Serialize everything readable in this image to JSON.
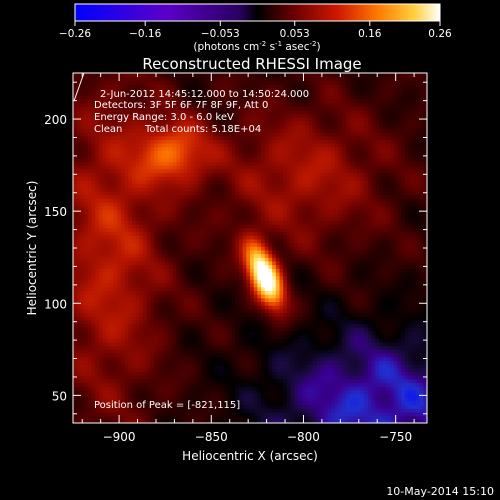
{
  "chart_data": {
    "type": "heatmap",
    "title": "Reconstructed RHESSI Image",
    "colorbar": {
      "ticks": [
        "-0.26",
        "-0.16",
        "-0.053",
        "0.053",
        "0.16",
        "0.26"
      ],
      "range": [
        -0.26,
        0.26
      ],
      "label_base": "(photons cm",
      "label_exp1": "-2",
      "label_mid": " s",
      "label_exp2": "-1",
      "label_end": " asec",
      "label_exp3": "-2",
      "label_close": ")"
    },
    "annotations": {
      "time_range": "2-Jun-2012 14:45:12.000 to 14:50:24.000",
      "detectors": "Detectors: 3F 5F 6F 7F 8F 9F, Att 0",
      "energy": "Energy Range: 3.0 - 6.0 keV",
      "method": "Clean",
      "counts": "Total counts: 5.18E+04",
      "peak": "Position of Peak = [-821,115]"
    },
    "x_axis": {
      "label": "Heliocentric X (arcsec)",
      "ticks": [
        -900,
        -850,
        -800,
        -750
      ],
      "tick_labels": [
        "−900",
        "−850",
        "−800",
        "−750"
      ],
      "range": [
        -925,
        -733
      ]
    },
    "y_axis": {
      "label": "Heliocentric Y (arcsec)",
      "ticks": [
        50,
        100,
        150,
        200
      ],
      "tick_labels": [
        "50",
        "100",
        "150",
        "200"
      ],
      "range": [
        35,
        225
      ]
    },
    "sources": [
      {
        "x": -821,
        "y": 115,
        "sx": 5.5,
        "sy": 13,
        "rot": -0.38,
        "amp": 1.0
      },
      {
        "x": -870,
        "y": 182,
        "sx": 14,
        "sy": 12,
        "rot": 0,
        "amp": 0.42
      },
      {
        "x": -905,
        "y": 130,
        "sx": 20,
        "sy": 60,
        "rot": 0,
        "amp": 0.3
      },
      {
        "x": -800,
        "y": 170,
        "sx": 30,
        "sy": 25,
        "rot": 0,
        "amp": 0.25
      }
    ],
    "colormap": [
      "#000000",
      "#2a0000",
      "#5a0000",
      "#8a0800",
      "#b81600",
      "#e03a00",
      "#f86a00",
      "#ff9a10",
      "#ffcc40",
      "#ffec80",
      "#ffffff"
    ],
    "negative_colormap": [
      "#000000",
      "#1a0a40",
      "#3a0090",
      "#2030d0",
      "#0000ff"
    ]
  },
  "footer": {
    "date": "10-May-2014 15:10"
  }
}
